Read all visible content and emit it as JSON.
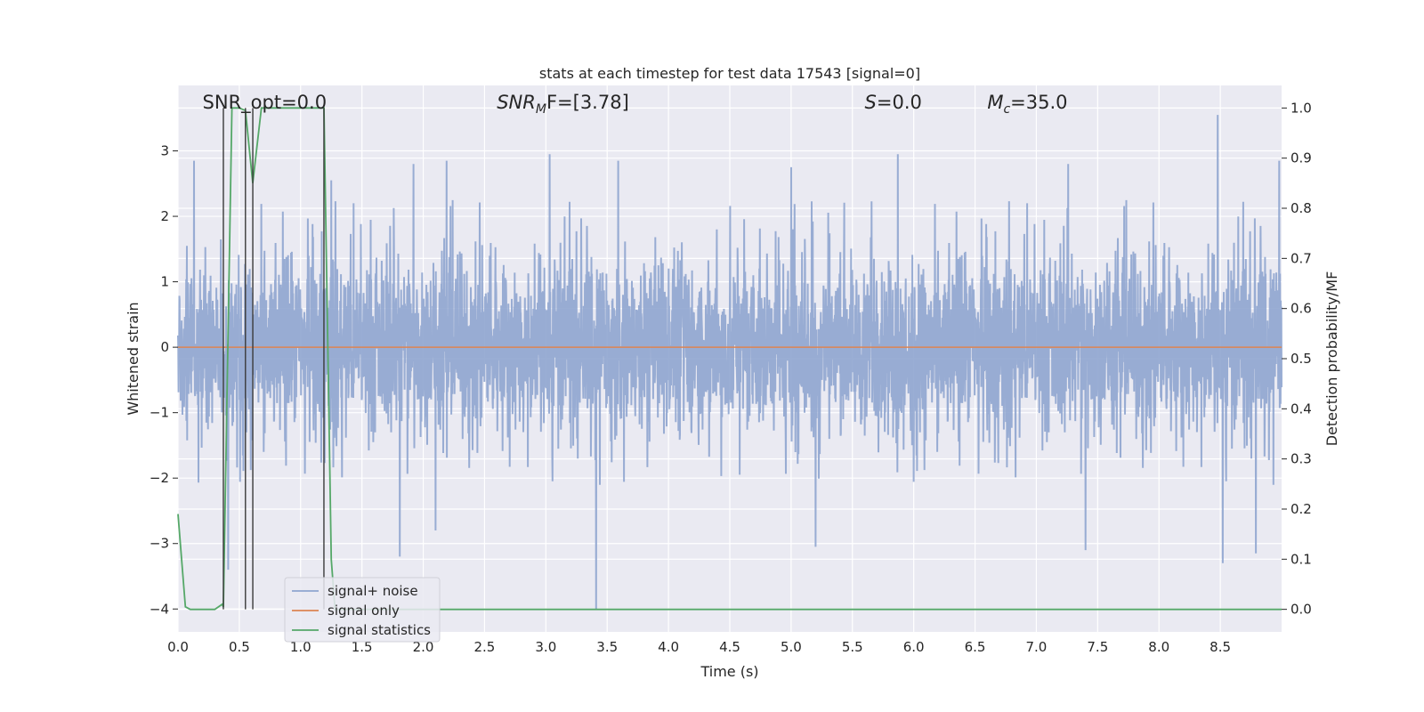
{
  "chart_data": {
    "type": "line",
    "title": "stats at each timestep for test data 17543 [signal=0]",
    "xlabel": "Time (s)",
    "ylabel": "Whitened strain",
    "ylabel_right": "Detection probability/MF",
    "xlim": [
      0,
      9.0
    ],
    "ylim": [
      -4.35,
      4.0
    ],
    "ylim_right": [
      -0.045,
      1.045
    ],
    "xticks": [
      "0.0",
      "0.5",
      "1.0",
      "1.5",
      "2.0",
      "2.5",
      "3.0",
      "3.5",
      "4.0",
      "4.5",
      "5.0",
      "5.5",
      "6.0",
      "6.5",
      "7.0",
      "7.5",
      "8.0",
      "8.5"
    ],
    "xtick_values": [
      0,
      0.5,
      1,
      1.5,
      2,
      2.5,
      3,
      3.5,
      4,
      4.5,
      5,
      5.5,
      6,
      6.5,
      7,
      7.5,
      8,
      8.5
    ],
    "yticks": [
      "3",
      "2",
      "1",
      "0",
      "−1",
      "−2",
      "−3",
      "−4"
    ],
    "ytick_values": [
      3,
      2,
      1,
      0,
      -1,
      -2,
      -3,
      -4
    ],
    "yticks_right": [
      "1.0",
      "0.9",
      "0.8",
      "0.7",
      "0.6",
      "0.5",
      "0.4",
      "0.3",
      "0.2",
      "0.1",
      "0.0"
    ],
    "ytick_values_right": [
      1.0,
      0.9,
      0.8,
      0.7,
      0.6,
      0.5,
      0.4,
      0.3,
      0.2,
      0.1,
      0.0
    ],
    "grid": true,
    "legend_position": "lower-left",
    "annotations": [
      {
        "text": "SNR_opt=0.0",
        "x": 0.2,
        "math": false
      },
      {
        "text": "SNR",
        "sub": "M",
        "rest": "F=[3.78]",
        "x": 2.6,
        "math": true
      },
      {
        "text": "S",
        "rest": "=0.0",
        "x": 5.6,
        "math": true
      },
      {
        "text": "M",
        "sub": "c",
        "rest": "=35.0",
        "x": 6.6,
        "math": true
      }
    ],
    "vertical_markers_x": [
      0.37,
      0.55,
      0.61,
      1.19
    ],
    "series": [
      {
        "name": "signal+ noise",
        "color": "#8fa5cf",
        "kind": "noise",
        "typical_envelope": [
          -1.7,
          1.8
        ],
        "notable_peaks": [
          {
            "x": 0.13,
            "y": 2.85
          },
          {
            "x": 0.41,
            "y": -3.4
          },
          {
            "x": 1.25,
            "y": 2.55
          },
          {
            "x": 1.81,
            "y": -3.2
          },
          {
            "x": 1.92,
            "y": 2.8
          },
          {
            "x": 2.1,
            "y": -2.8
          },
          {
            "x": 2.19,
            "y": 2.85
          },
          {
            "x": 3.03,
            "y": 2.95
          },
          {
            "x": 3.41,
            "y": -4.0
          },
          {
            "x": 3.59,
            "y": 2.85
          },
          {
            "x": 5.0,
            "y": 2.75
          },
          {
            "x": 5.2,
            "y": -3.05
          },
          {
            "x": 5.87,
            "y": 2.95
          },
          {
            "x": 7.26,
            "y": 2.8
          },
          {
            "x": 7.4,
            "y": -3.1
          },
          {
            "x": 8.48,
            "y": 3.55
          },
          {
            "x": 8.52,
            "y": -3.3
          },
          {
            "x": 8.79,
            "y": -3.15
          },
          {
            "x": 8.98,
            "y": 2.85
          }
        ]
      },
      {
        "name": "signal only",
        "color": "#dd8452",
        "x": [
          0,
          9.0
        ],
        "y": [
          0,
          0
        ]
      },
      {
        "name": "signal statistics",
        "color": "#55a868",
        "axis": "right",
        "x": [
          0.0,
          0.06,
          0.1,
          0.3,
          0.36,
          0.37,
          0.44,
          0.5,
          0.55,
          0.61,
          0.68,
          0.7,
          1.19,
          1.25,
          1.28,
          1.32,
          9.0
        ],
        "y": [
          0.19,
          0.005,
          0.0,
          0.0,
          0.01,
          0.005,
          1.0,
          1.0,
          0.995,
          0.85,
          1.0,
          1.0,
          1.0,
          0.1,
          0.0,
          0.0,
          0.0
        ]
      }
    ]
  }
}
